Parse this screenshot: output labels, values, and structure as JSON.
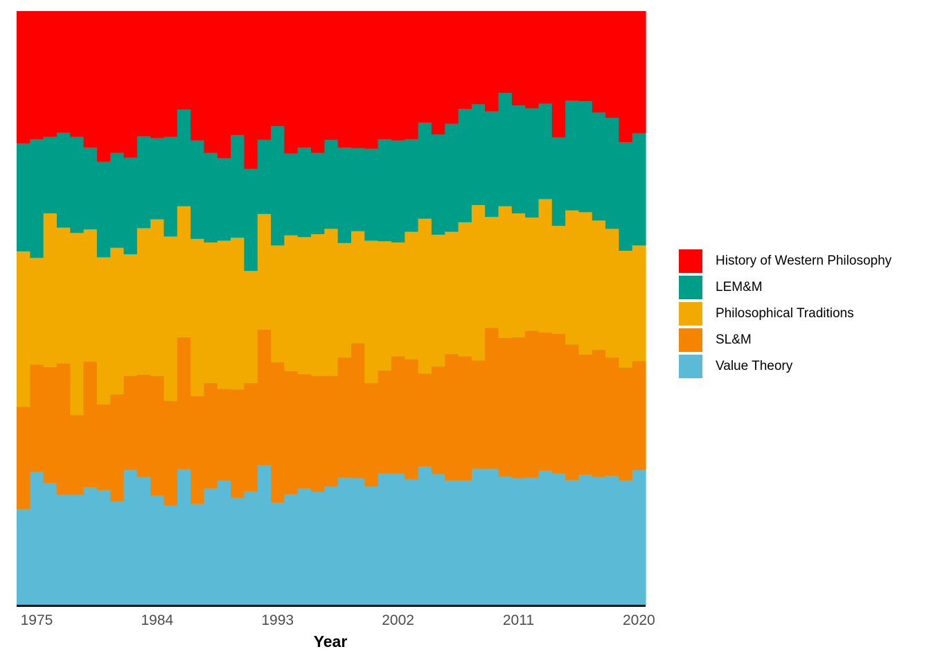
{
  "chart_data": {
    "type": "area",
    "stacking": "fill",
    "xlabel": "Year",
    "ylabel": "",
    "title": "",
    "x_ticks": [
      1975,
      1984,
      1993,
      2002,
      2011,
      2020
    ],
    "x": [
      1974,
      1975,
      1976,
      1977,
      1978,
      1979,
      1980,
      1981,
      1982,
      1983,
      1984,
      1985,
      1986,
      1987,
      1988,
      1989,
      1990,
      1991,
      1992,
      1993,
      1994,
      1995,
      1996,
      1997,
      1998,
      1999,
      2000,
      2001,
      2002,
      2003,
      2004,
      2005,
      2006,
      2007,
      2008,
      2009,
      2010,
      2011,
      2012,
      2013,
      2014,
      2015,
      2016,
      2017,
      2018,
      2019,
      2020
    ],
    "legend_position": "right",
    "grid": false,
    "series": [
      {
        "name": "Value Theory",
        "color": "#5BBAD5",
        "values": [
          0.162,
          0.225,
          0.206,
          0.186,
          0.186,
          0.199,
          0.194,
          0.175,
          0.228,
          0.216,
          0.185,
          0.168,
          0.229,
          0.171,
          0.197,
          0.21,
          0.181,
          0.192,
          0.236,
          0.173,
          0.187,
          0.197,
          0.191,
          0.2,
          0.215,
          0.214,
          0.2,
          0.222,
          0.222,
          0.212,
          0.234,
          0.221,
          0.21,
          0.21,
          0.23,
          0.23,
          0.217,
          0.214,
          0.215,
          0.227,
          0.222,
          0.211,
          0.22,
          0.216,
          0.218,
          0.21,
          0.228
        ]
      },
      {
        "name": "SL&M",
        "color": "#F58403",
        "values": [
          0.172,
          0.18,
          0.195,
          0.221,
          0.134,
          0.211,
          0.144,
          0.18,
          0.158,
          0.172,
          0.201,
          0.176,
          0.222,
          0.181,
          0.177,
          0.154,
          0.182,
          0.182,
          0.228,
          0.236,
          0.207,
          0.192,
          0.195,
          0.186,
          0.202,
          0.227,
          0.174,
          0.173,
          0.197,
          0.202,
          0.156,
          0.181,
          0.213,
          0.209,
          0.182,
          0.237,
          0.233,
          0.237,
          0.247,
          0.232,
          0.235,
          0.228,
          0.202,
          0.214,
          0.199,
          0.19,
          0.183
        ]
      },
      {
        "name": "Philosophical Traditions",
        "color": "#F2AA00",
        "values": [
          0.262,
          0.18,
          0.259,
          0.229,
          0.307,
          0.223,
          0.248,
          0.247,
          0.205,
          0.247,
          0.264,
          0.277,
          0.221,
          0.265,
          0.237,
          0.25,
          0.256,
          0.189,
          0.195,
          0.197,
          0.229,
          0.231,
          0.239,
          0.248,
          0.193,
          0.189,
          0.24,
          0.218,
          0.192,
          0.215,
          0.261,
          0.222,
          0.206,
          0.226,
          0.262,
          0.187,
          0.222,
          0.209,
          0.191,
          0.225,
          0.182,
          0.226,
          0.24,
          0.218,
          0.217,
          0.197,
          0.195
        ]
      },
      {
        "name": "LEM&M",
        "color": "#009E89",
        "values": [
          0.182,
          0.2,
          0.129,
          0.16,
          0.162,
          0.138,
          0.161,
          0.16,
          0.163,
          0.155,
          0.137,
          0.168,
          0.163,
          0.166,
          0.151,
          0.139,
          0.173,
          0.172,
          0.125,
          0.201,
          0.138,
          0.151,
          0.137,
          0.15,
          0.161,
          0.14,
          0.155,
          0.172,
          0.172,
          0.156,
          0.162,
          0.169,
          0.182,
          0.191,
          0.17,
          0.178,
          0.191,
          0.182,
          0.184,
          0.161,
          0.149,
          0.185,
          0.187,
          0.182,
          0.187,
          0.183,
          0.189
        ]
      },
      {
        "name": "History of Western Philosophy",
        "color": "#FF0000",
        "values": [
          0.222,
          0.215,
          0.211,
          0.204,
          0.211,
          0.229,
          0.253,
          0.238,
          0.246,
          0.21,
          0.213,
          0.211,
          0.165,
          0.217,
          0.238,
          0.247,
          0.208,
          0.265,
          0.216,
          0.193,
          0.239,
          0.229,
          0.238,
          0.216,
          0.229,
          0.23,
          0.231,
          0.215,
          0.217,
          0.215,
          0.187,
          0.207,
          0.189,
          0.164,
          0.156,
          0.168,
          0.137,
          0.158,
          0.163,
          0.155,
          0.212,
          0.15,
          0.151,
          0.17,
          0.179,
          0.22,
          0.205
        ]
      }
    ]
  }
}
